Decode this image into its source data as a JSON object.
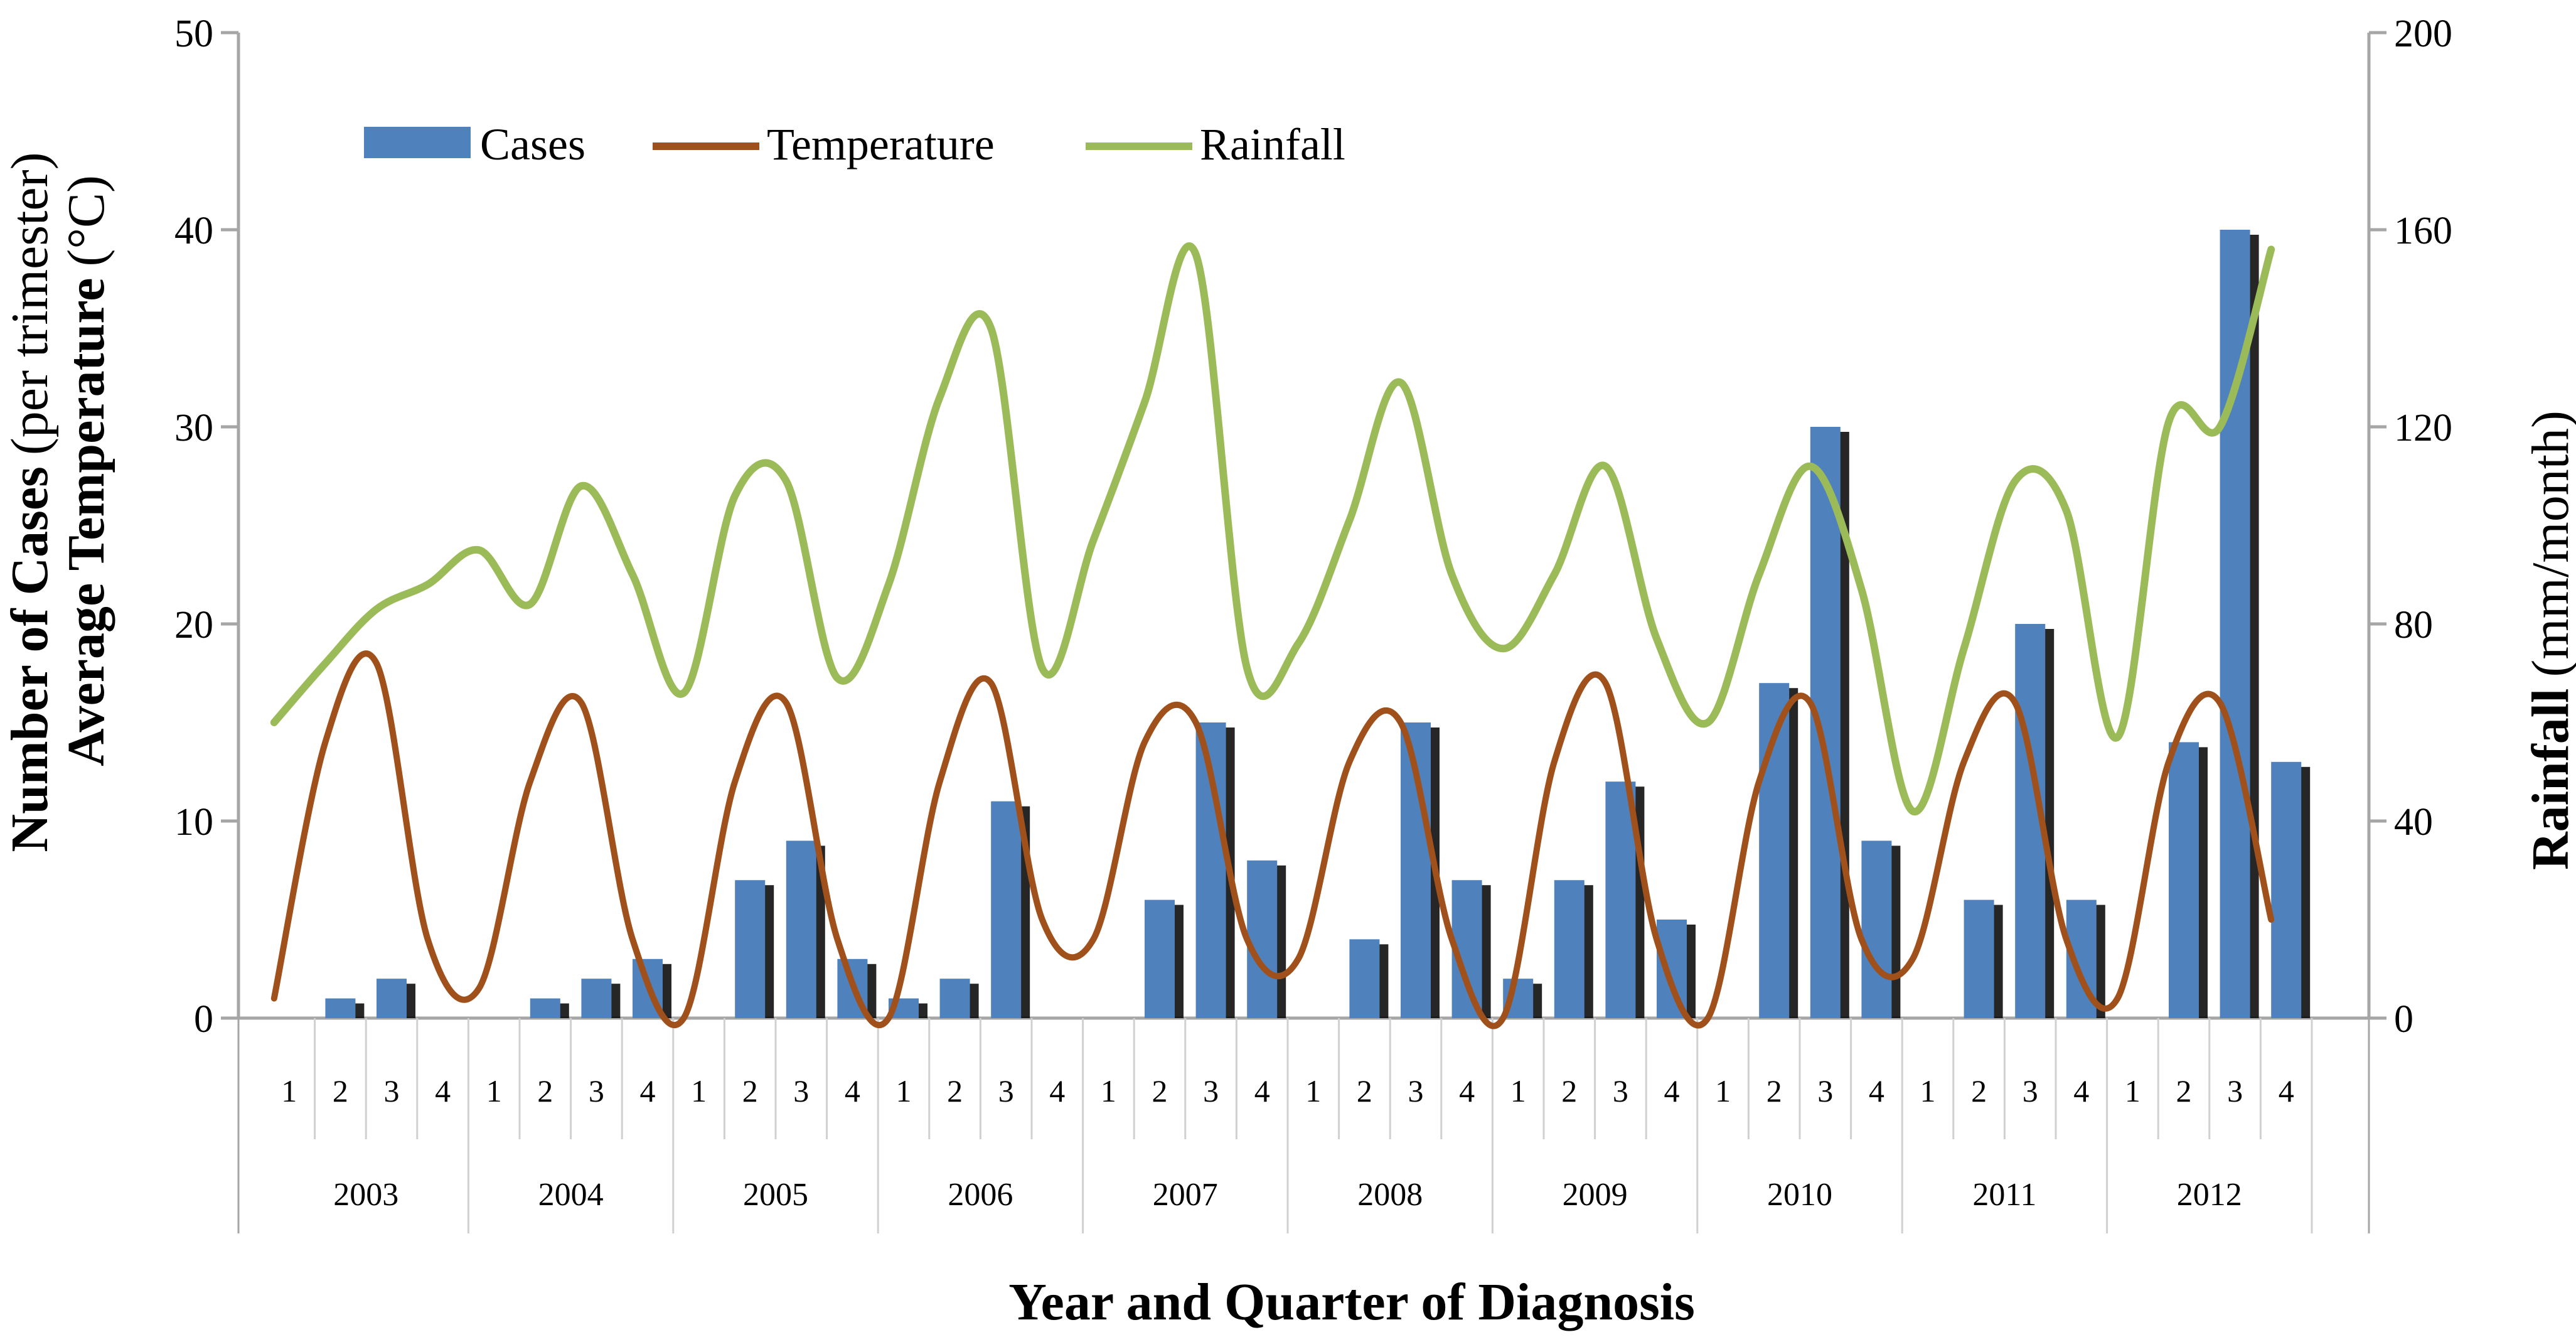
{
  "chart_data": {
    "type": "bar+line",
    "xlabel": "Year and Quarter of Diagnosis",
    "ylabel_left_bold_1": "Number of Cases",
    "ylabel_left_normal_1": "(per trimester)",
    "ylabel_left_bold_2": "Average Temperature",
    "ylabel_left_normal_2": "(°C)",
    "ylabel_right_bold": "Rainfall",
    "ylabel_right_normal": "(mm/month)",
    "ylim_left": [
      0,
      50
    ],
    "yticks_left": [
      "0",
      "10",
      "20",
      "30",
      "40",
      "50"
    ],
    "ylim_right": [
      0,
      200
    ],
    "yticks_right": [
      "0",
      "40",
      "80",
      "120",
      "160",
      "200"
    ],
    "years": [
      "2003",
      "2004",
      "2005",
      "2006",
      "2007",
      "2008",
      "2009",
      "2010",
      "2011",
      "2012"
    ],
    "quarter_labels": [
      "1",
      "2",
      "3",
      "4"
    ],
    "legend": {
      "cases": "Cases",
      "temperature": "Temperature",
      "rainfall": "Rainfall"
    },
    "colors": {
      "cases": "#4F81BD",
      "temperature": "#A0501A",
      "rainfall": "#9BBB59",
      "axis": "#A6A6A6"
    },
    "series": [
      {
        "name": "Cases",
        "axis": "left",
        "values": [
          0,
          1,
          2,
          0,
          0,
          1,
          2,
          3,
          0,
          7,
          9,
          3,
          1,
          2,
          11,
          0,
          0,
          6,
          15,
          8,
          0,
          4,
          15,
          7,
          2,
          7,
          12,
          5,
          0,
          17,
          30,
          9,
          0,
          6,
          20,
          6,
          0,
          14,
          40,
          13
        ]
      },
      {
        "name": "Temperature",
        "axis": "left",
        "values": [
          1,
          14,
          18,
          4,
          1.5,
          12,
          16,
          4,
          0,
          12,
          16,
          4,
          0,
          12,
          17,
          5,
          4,
          14,
          15,
          4,
          3,
          13,
          15,
          4,
          0,
          13,
          17,
          4,
          0,
          12,
          16,
          4,
          3,
          13,
          16,
          4,
          1,
          13,
          16,
          5
        ]
      },
      {
        "name": "Rainfall",
        "axis": "right",
        "values": [
          60,
          72,
          83,
          88,
          95,
          84,
          108,
          90,
          66,
          106,
          109,
          69,
          88,
          126,
          140,
          71,
          97,
          125,
          155,
          71,
          76,
          101,
          129,
          90,
          75,
          90,
          112,
          77,
          60,
          90,
          112,
          87,
          42,
          75,
          109,
          103,
          57,
          121,
          120,
          156
        ]
      }
    ]
  }
}
